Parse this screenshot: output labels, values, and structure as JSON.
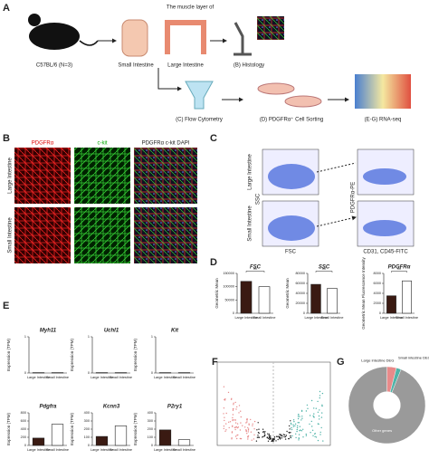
{
  "panels": {
    "A": {
      "label": "A",
      "title": "The muscle layer of",
      "mouse": "C57BL/6 (N=3)",
      "steps": [
        "Small Intestine",
        "Large Intestine",
        "(B) Histology"
      ],
      "steps2": [
        "(C) Flow Cytometry",
        "(D) PDGFRα⁺ Cell Sorting",
        "(E-G) RNA-seq"
      ]
    },
    "B": {
      "label": "B",
      "columns": [
        "PDGFRα",
        "c-kit",
        "PDGFRα c-kit DAPI"
      ],
      "rows": [
        "Large Intestine",
        "Small Intestine"
      ]
    },
    "C": {
      "label": "C",
      "rows": [
        "Large Intestine",
        "Small Intestine"
      ],
      "xlabel_left": "FSC",
      "ylabel_left": "SSC",
      "xlabel_right": "CD31, CD45-FITC",
      "ylabel_right": "PDGFRα-PE"
    },
    "D": {
      "label": "D"
    },
    "E": {
      "label": "E"
    },
    "F": {
      "label": "F"
    },
    "G": {
      "label": "G"
    }
  },
  "chart_data": [
    {
      "type": "bar",
      "title": "FSC",
      "ylabel": "Geometric Mean",
      "categories": [
        "Large Intestine",
        "Small Intestine"
      ],
      "values": [
        120000,
        100000
      ],
      "colors": [
        "#3a1a12",
        "#ffffff"
      ],
      "ylim": [
        0,
        150000
      ],
      "yticks": [
        0,
        50000,
        100000,
        150000
      ],
      "annotation": "**"
    },
    {
      "type": "bar",
      "title": "SSC",
      "ylabel": "Geometric Mean",
      "categories": [
        "Large Intestine",
        "Small Intestine"
      ],
      "values": [
        58000,
        50000
      ],
      "colors": [
        "#3a1a12",
        "#ffffff"
      ],
      "ylim": [
        0,
        80000
      ],
      "yticks": [
        0,
        20000,
        40000,
        60000,
        80000
      ],
      "annotation": "**"
    },
    {
      "type": "bar",
      "title": "PDGFRα",
      "ylabel": "Geometric Mean Fluorescence Intensity",
      "categories": [
        "Large Intestine",
        "Small Intestine"
      ],
      "values": [
        3500,
        6500
      ],
      "colors": [
        "#3a1a12",
        "#ffffff"
      ],
      "ylim": [
        0,
        8000
      ],
      "yticks": [
        0,
        2000,
        4000,
        6000,
        8000
      ],
      "annotation": "**"
    },
    {
      "type": "bar",
      "title": "Myh11",
      "ylabel": "Expression (TPM)",
      "categories": [
        "Large Intestine",
        "Small Intestine"
      ],
      "values": [
        0.01,
        0.01
      ],
      "colors": [
        "#3a1a12",
        "#ffffff"
      ],
      "ylim": [
        0,
        1
      ],
      "yticks": [
        0,
        1
      ]
    },
    {
      "type": "bar",
      "title": "Uchl1",
      "ylabel": "Expression (TPM)",
      "categories": [
        "Large Intestine",
        "Small Intestine"
      ],
      "values": [
        0.01,
        0.01
      ],
      "colors": [
        "#3a1a12",
        "#ffffff"
      ],
      "ylim": [
        0,
        1
      ],
      "yticks": [
        0,
        1
      ]
    },
    {
      "type": "bar",
      "title": "Kit",
      "ylabel": "Expression (TPM)",
      "categories": [
        "Large Intestine",
        "Small Intestine"
      ],
      "values": [
        0.01,
        0.01
      ],
      "colors": [
        "#3a1a12",
        "#ffffff"
      ],
      "ylim": [
        0,
        1
      ],
      "yticks": [
        0,
        1
      ]
    },
    {
      "type": "bar",
      "title": "Pdgfra",
      "ylabel": "Expression (TPM)",
      "categories": [
        "Large Intestine",
        "Small Intestine"
      ],
      "values": [
        180,
        520
      ],
      "colors": [
        "#3a1a12",
        "#ffffff"
      ],
      "ylim": [
        0,
        800
      ],
      "yticks": [
        0,
        200,
        400,
        600,
        800
      ]
    },
    {
      "type": "bar",
      "title": "Kcnn3",
      "ylabel": "Expression (TPM)",
      "categories": [
        "Large Intestine",
        "Small Intestine"
      ],
      "values": [
        110,
        240
      ],
      "colors": [
        "#3a1a12",
        "#ffffff"
      ],
      "ylim": [
        0,
        400
      ],
      "yticks": [
        0,
        100,
        200,
        300,
        400
      ]
    },
    {
      "type": "bar",
      "title": "P2ry1",
      "ylabel": "Expression (TPM)",
      "categories": [
        "Large Intestine",
        "Small Intestine"
      ],
      "values": [
        190,
        70
      ],
      "colors": [
        "#3a1a12",
        "#ffffff"
      ],
      "ylim": [
        0,
        400
      ],
      "yticks": [
        0,
        100,
        200,
        300,
        400
      ]
    },
    {
      "type": "pie",
      "categories": [
        "Large intestine DEG",
        "Small intestine DEG",
        "Other genes"
      ],
      "values": [
        4,
        2,
        94
      ],
      "colors": [
        "#e88a8a",
        "#4fb3a8",
        "#9a9a9a"
      ]
    }
  ]
}
